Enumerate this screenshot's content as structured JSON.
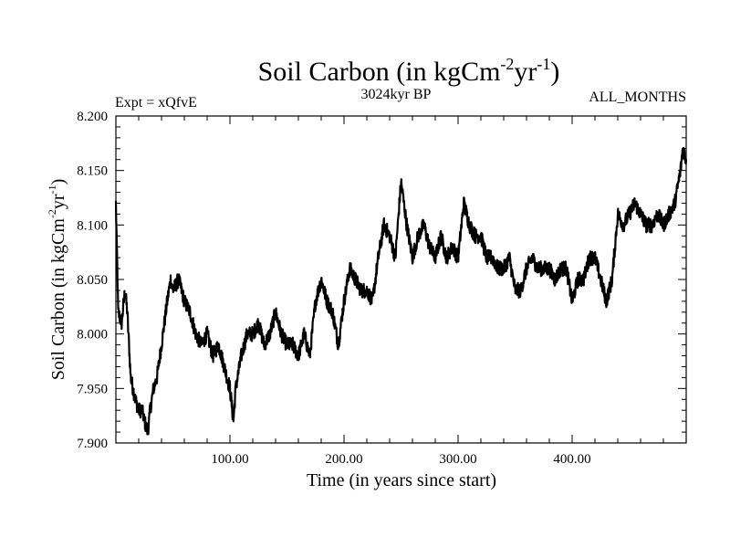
{
  "chart_data": {
    "type": "line",
    "title": "Soil Carbon (in kgCm",
    "title_sup1": "-2",
    "title_mid": "yr",
    "title_sup2": "-1",
    "title_end": ")",
    "subtitle": "3024kyr BP",
    "left_annotation": "Expt = xQfvE",
    "right_annotation": "ALL_MONTHS",
    "xlabel": "Time (in years since start)",
    "ylabel_main": "Soil Carbon (in kgCm",
    "ylabel_sup1": "-2",
    "ylabel_mid": "yr",
    "ylabel_sup2": "-1",
    "ylabel_end": ")",
    "xlim": [
      0,
      500
    ],
    "ylim": [
      7.9,
      8.2
    ],
    "x_ticks": [
      100,
      200,
      300,
      400
    ],
    "x_tick_labels": [
      "100.00",
      "200.00",
      "300.00",
      "400.00"
    ],
    "y_ticks": [
      7.9,
      7.95,
      8.0,
      8.05,
      8.1,
      8.15,
      8.2
    ],
    "y_tick_labels": [
      "7.900",
      "7.950",
      "8.000",
      "8.050",
      "8.100",
      "8.150",
      "8.200"
    ],
    "line_color": "#000000",
    "series": [
      {
        "name": "Soil Carbon",
        "x": [
          0,
          2,
          5,
          8,
          10,
          13,
          17,
          20,
          23,
          25,
          28,
          30,
          33,
          36,
          40,
          45,
          48,
          50,
          55,
          60,
          65,
          70,
          75,
          80,
          85,
          90,
          95,
          100,
          103,
          105,
          110,
          115,
          120,
          125,
          130,
          135,
          140,
          145,
          150,
          155,
          160,
          165,
          170,
          175,
          180,
          185,
          190,
          195,
          200,
          205,
          210,
          215,
          220,
          225,
          230,
          235,
          240,
          245,
          250,
          255,
          260,
          265,
          270,
          275,
          280,
          285,
          290,
          295,
          300,
          305,
          310,
          315,
          320,
          325,
          330,
          335,
          340,
          345,
          350,
          355,
          360,
          365,
          370,
          375,
          380,
          385,
          390,
          395,
          400,
          405,
          410,
          415,
          420,
          425,
          430,
          435,
          440,
          445,
          450,
          455,
          460,
          465,
          470,
          475,
          480,
          485,
          490,
          495,
          497,
          500
        ],
        "values": [
          8.12,
          8.02,
          8.01,
          8.04,
          8.02,
          7.96,
          7.94,
          7.93,
          7.93,
          7.92,
          7.91,
          7.93,
          7.95,
          7.96,
          7.99,
          8.03,
          8.05,
          8.04,
          8.05,
          8.03,
          8.02,
          8.0,
          7.99,
          8.0,
          7.98,
          7.99,
          7.97,
          7.95,
          7.92,
          7.95,
          7.98,
          8.0,
          8.0,
          8.01,
          7.99,
          8.0,
          8.02,
          8.0,
          7.99,
          7.99,
          7.98,
          8.0,
          7.98,
          8.03,
          8.05,
          8.03,
          8.02,
          7.99,
          8.03,
          8.06,
          8.05,
          8.04,
          8.04,
          8.03,
          8.07,
          8.1,
          8.09,
          8.07,
          8.14,
          8.1,
          8.07,
          8.09,
          8.1,
          8.08,
          8.07,
          8.09,
          8.07,
          8.08,
          8.07,
          8.12,
          8.1,
          8.09,
          8.09,
          8.07,
          8.07,
          8.06,
          8.06,
          8.07,
          8.04,
          8.04,
          8.06,
          8.07,
          8.06,
          8.06,
          8.06,
          8.05,
          8.06,
          8.06,
          8.03,
          8.05,
          8.05,
          8.07,
          8.07,
          8.05,
          8.03,
          8.05,
          8.11,
          8.1,
          8.11,
          8.12,
          8.11,
          8.1,
          8.1,
          8.11,
          8.1,
          8.11,
          8.12,
          8.15,
          8.17,
          8.16
        ]
      }
    ]
  }
}
